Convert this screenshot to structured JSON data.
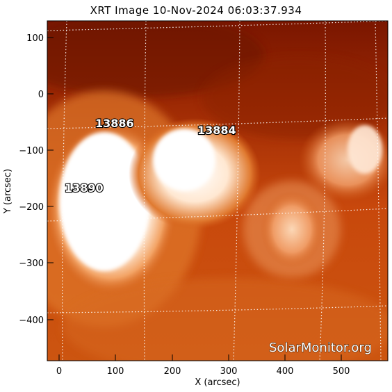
{
  "title": "XRT Image 10-Nov-2024 06:03:37.934",
  "watermark": "SolarMonitor.org",
  "axes": {
    "xlabel": "X (arcsec)",
    "ylabel": "Y (arcsec)",
    "xticks": [
      "0",
      "100",
      "200",
      "300",
      "400",
      "500"
    ],
    "yticks": [
      "100",
      "0",
      "−100",
      "−200",
      "−300",
      "−400"
    ]
  },
  "regions": [
    {
      "id": "13886",
      "label": "13886"
    },
    {
      "id": "13884",
      "label": "13884"
    },
    {
      "id": "13890",
      "label": "13890"
    }
  ],
  "colors": {
    "background_dark": "#7a1800",
    "mid": "#c84a10",
    "bright": "#ffd9b0",
    "saturated": "#ffffff"
  }
}
